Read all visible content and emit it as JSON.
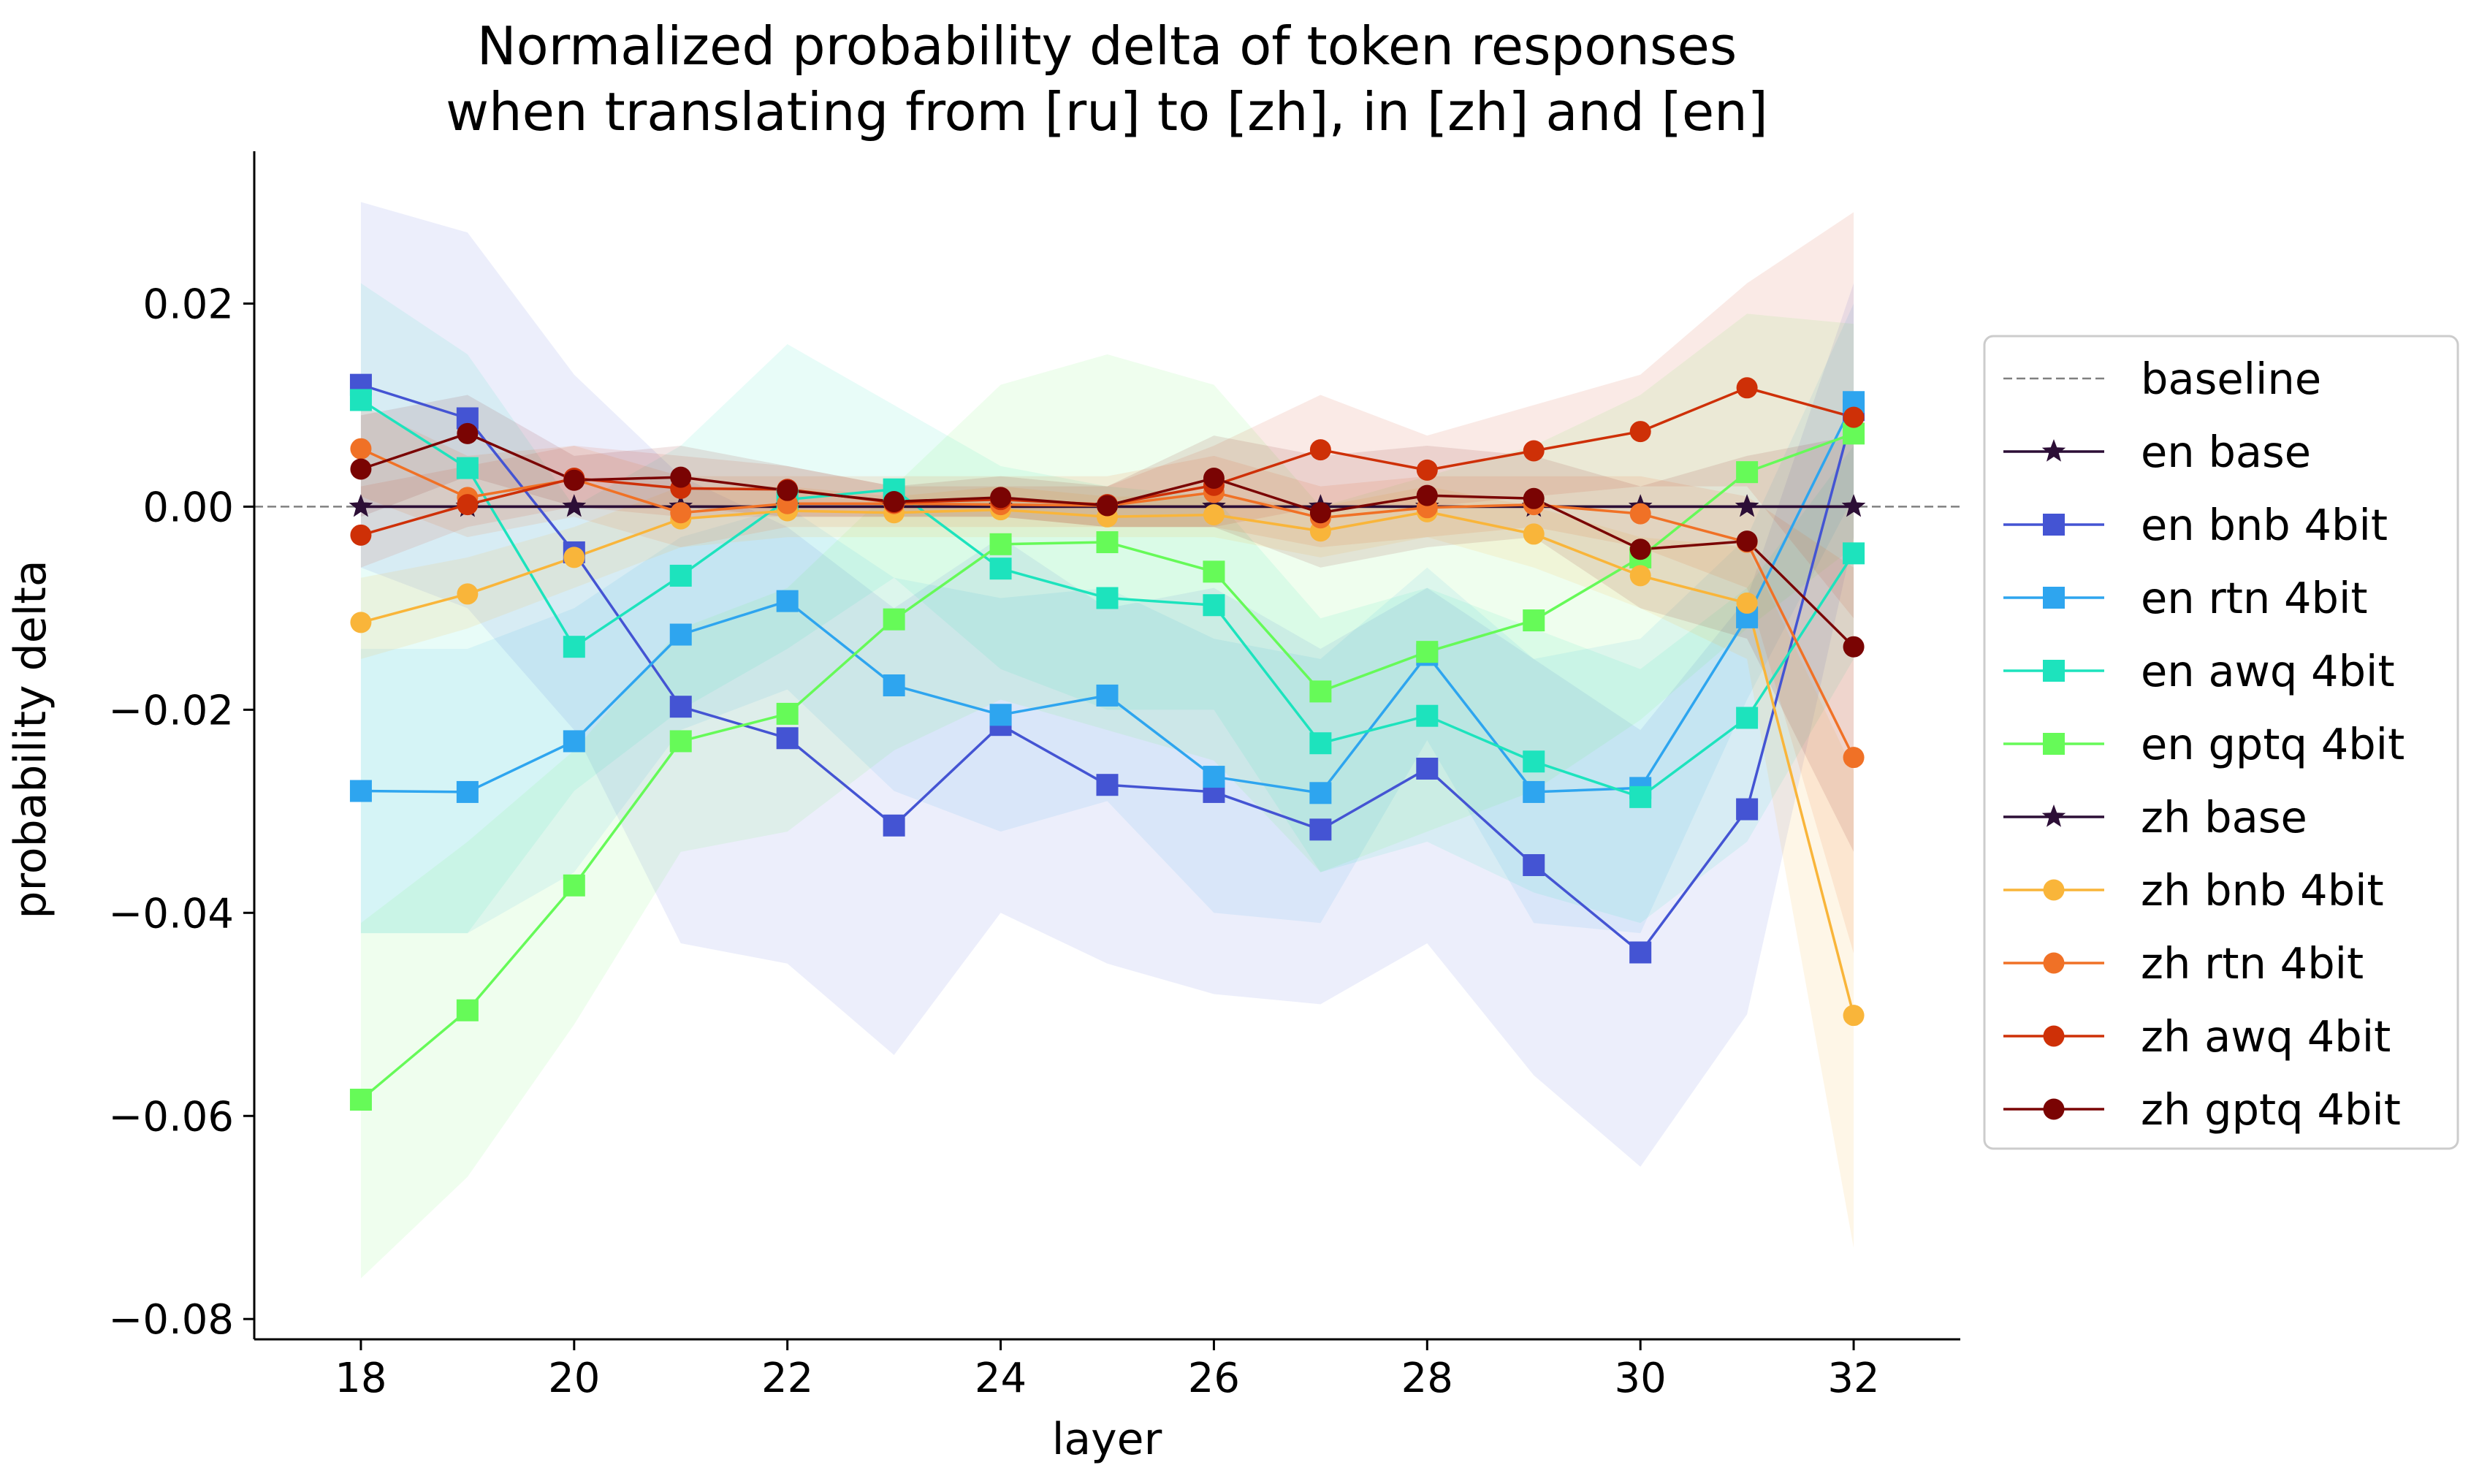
{
  "chart_data": {
    "type": "line",
    "title_lines": [
      "Normalized probability delta of token responses",
      "when translating from [ru] to [zh], in [zh] and [en]"
    ],
    "xlabel": "layer",
    "ylabel": "probability delta",
    "xlim": [
      17,
      33
    ],
    "ylim": [
      -0.082,
      0.035
    ],
    "xticks": [
      18,
      20,
      22,
      24,
      26,
      28,
      30,
      32
    ],
    "yticks": [
      -0.08,
      -0.06,
      -0.04,
      -0.02,
      0.0,
      0.02
    ],
    "ytick_labels": [
      "−0.08",
      "−0.06",
      "−0.04",
      "−0.02",
      "0.00",
      "0.02"
    ],
    "baseline": {
      "name": "baseline",
      "value": 0,
      "color": "#808080"
    },
    "legend_position": "center-right",
    "x": [
      18,
      19,
      20,
      21,
      22,
      23,
      24,
      25,
      26,
      27,
      28,
      29,
      30,
      31,
      32
    ],
    "series": [
      {
        "name": "en base",
        "color": "#2c0e36",
        "marker": "star",
        "values": [
          0,
          0,
          0,
          0,
          0,
          0,
          0,
          0,
          0,
          0,
          0,
          0,
          0,
          0,
          0
        ]
      },
      {
        "name": "en bnb 4bit",
        "color": "#4454d3",
        "marker": "square",
        "values": [
          0.012,
          0.0087,
          -0.0045,
          -0.0197,
          -0.0228,
          -0.0314,
          -0.0215,
          -0.0274,
          -0.0281,
          -0.0318,
          -0.0258,
          -0.0353,
          -0.0439,
          -0.0298,
          0.0095
        ],
        "band_upper": [
          0.03,
          0.027,
          0.013,
          0.003,
          -0.002,
          -0.01,
          -0.003,
          -0.01,
          -0.008,
          -0.014,
          -0.008,
          -0.015,
          -0.022,
          -0.009,
          0.022
        ],
        "band_lower": [
          -0.006,
          -0.01,
          -0.022,
          -0.043,
          -0.045,
          -0.054,
          -0.04,
          -0.045,
          -0.048,
          -0.049,
          -0.043,
          -0.056,
          -0.065,
          -0.05,
          -0.003
        ],
        "band_opacity": 0.1
      },
      {
        "name": "en rtn 4bit",
        "color": "#2ea5ef",
        "marker": "square",
        "values": [
          -0.028,
          -0.0281,
          -0.0231,
          -0.0126,
          -0.0093,
          -0.0176,
          -0.0205,
          -0.0186,
          -0.0266,
          -0.0282,
          -0.0146,
          -0.0281,
          -0.0277,
          -0.0109,
          0.0103
        ],
        "band_upper": [
          -0.014,
          -0.014,
          -0.01,
          -0.003,
          0.0,
          -0.007,
          -0.009,
          -0.008,
          -0.013,
          -0.015,
          -0.006,
          -0.015,
          -0.013,
          -0.003,
          0.02
        ],
        "band_lower": [
          -0.042,
          -0.042,
          -0.036,
          -0.022,
          -0.018,
          -0.028,
          -0.032,
          -0.029,
          -0.04,
          -0.041,
          -0.023,
          -0.041,
          -0.042,
          -0.019,
          0.001
        ],
        "band_opacity": 0.1
      },
      {
        "name": "en awq 4bit",
        "color": "#1de3bd",
        "marker": "square",
        "values": [
          0.0105,
          0.0038,
          -0.0138,
          -0.0068,
          0.0007,
          0.0017,
          -0.0061,
          -0.009,
          -0.0097,
          -0.0233,
          -0.0206,
          -0.0251,
          -0.0286,
          -0.0208,
          -0.0046
        ],
        "band_upper": [
          0.022,
          0.015,
          0.0,
          0.006,
          0.016,
          0.01,
          0.004,
          0.002,
          0.001,
          -0.011,
          -0.008,
          -0.012,
          -0.016,
          -0.008,
          0.006
        ],
        "band_lower": [
          -0.042,
          -0.042,
          -0.028,
          -0.02,
          -0.014,
          -0.007,
          -0.016,
          -0.02,
          -0.02,
          -0.036,
          -0.033,
          -0.038,
          -0.041,
          -0.033,
          -0.015
        ],
        "band_opacity": 0.1
      },
      {
        "name": "en gptq 4bit",
        "color": "#66fa58",
        "marker": "square",
        "values": [
          -0.0584,
          -0.0496,
          -0.0373,
          -0.0231,
          -0.0204,
          -0.0111,
          -0.0037,
          -0.0035,
          -0.0064,
          -0.0182,
          -0.0143,
          -0.0112,
          -0.005,
          0.0034,
          0.0072
        ],
        "band_upper": [
          -0.041,
          -0.033,
          -0.024,
          -0.012,
          -0.008,
          0.002,
          0.012,
          0.015,
          0.012,
          0.0,
          0.003,
          0.006,
          0.011,
          0.019,
          0.018
        ],
        "band_lower": [
          -0.076,
          -0.066,
          -0.051,
          -0.034,
          -0.032,
          -0.024,
          -0.019,
          -0.022,
          -0.025,
          -0.036,
          -0.032,
          -0.028,
          -0.021,
          -0.012,
          -0.004
        ],
        "band_opacity": 0.1
      },
      {
        "name": "zh base",
        "color": "#2c0e36",
        "marker": "star",
        "values": [
          0,
          0,
          0,
          0,
          0,
          0,
          0,
          0,
          0,
          0,
          0,
          0,
          0,
          0,
          0
        ]
      },
      {
        "name": "zh bnb 4bit",
        "color": "#f9b53a",
        "marker": "circle",
        "values": [
          -0.0114,
          -0.0086,
          -0.005,
          -0.0012,
          -0.0004,
          -0.0006,
          -0.0003,
          -0.001,
          -0.0008,
          -0.0024,
          -0.0005,
          -0.0027,
          -0.0068,
          -0.0095,
          -0.0501
        ],
        "band_upper": [
          -0.007,
          -0.005,
          -0.002,
          0.002,
          0.002,
          0.001,
          0.002,
          0.001,
          0.001,
          0.0,
          0.002,
          0.0,
          -0.003,
          -0.004,
          -0.026
        ],
        "band_lower": [
          -0.015,
          -0.012,
          -0.008,
          -0.004,
          -0.003,
          -0.003,
          -0.003,
          -0.003,
          -0.003,
          -0.005,
          -0.003,
          -0.006,
          -0.01,
          -0.015,
          -0.073
        ],
        "band_opacity": 0.12
      },
      {
        "name": "zh rtn 4bit",
        "color": "#f07126",
        "marker": "circle",
        "values": [
          0.0057,
          0.0009,
          0.0027,
          -0.0006,
          0.0003,
          0.0003,
          0.0002,
          0.0001,
          0.0014,
          -0.0011,
          -0.0001,
          0.0002,
          -0.0007,
          -0.0035,
          -0.0247
        ],
        "band_upper": [
          0.01,
          0.005,
          0.006,
          0.003,
          0.003,
          0.003,
          0.003,
          0.003,
          0.005,
          0.002,
          0.003,
          0.003,
          0.003,
          0.001,
          -0.006
        ],
        "band_lower": [
          0.001,
          -0.003,
          -0.001,
          -0.004,
          -0.002,
          -0.002,
          -0.002,
          -0.002,
          -0.002,
          -0.004,
          -0.003,
          -0.002,
          -0.004,
          -0.008,
          -0.044
        ],
        "band_opacity": 0.12
      },
      {
        "name": "zh awq 4bit",
        "color": "#ce3007",
        "marker": "circle",
        "values": [
          -0.0028,
          0.0002,
          0.0028,
          0.0018,
          0.0017,
          0.0004,
          0.0007,
          0.0002,
          0.0021,
          0.0056,
          0.0036,
          0.0055,
          0.0074,
          0.0117,
          0.0088
        ],
        "band_upper": [
          0.002,
          0.004,
          0.006,
          0.005,
          0.004,
          0.002,
          0.002,
          0.002,
          0.006,
          0.011,
          0.007,
          0.01,
          0.013,
          0.022,
          0.029
        ],
        "band_lower": [
          -0.006,
          -0.002,
          0.0,
          -0.001,
          -0.001,
          -0.001,
          -0.001,
          -0.002,
          -0.002,
          0.0,
          0.0,
          0.001,
          0.002,
          0.002,
          -0.011
        ],
        "band_opacity": 0.1
      },
      {
        "name": "zh gptq 4bit",
        "color": "#7a0403",
        "marker": "circle",
        "values": [
          0.0037,
          0.0072,
          0.0026,
          0.0029,
          0.0016,
          0.0005,
          0.0009,
          0.0001,
          0.0028,
          -0.0006,
          0.0011,
          0.0008,
          -0.0042,
          -0.0034,
          -0.0138
        ],
        "band_upper": [
          0.009,
          0.011,
          0.005,
          0.006,
          0.004,
          0.002,
          0.003,
          0.002,
          0.007,
          0.005,
          0.006,
          0.005,
          0.002,
          0.005,
          0.007
        ],
        "band_lower": [
          -0.001,
          0.003,
          0.0,
          0.0,
          -0.001,
          -0.001,
          -0.001,
          -0.002,
          -0.002,
          -0.006,
          -0.004,
          -0.003,
          -0.01,
          -0.013,
          -0.034
        ],
        "band_opacity": 0.1
      }
    ]
  }
}
